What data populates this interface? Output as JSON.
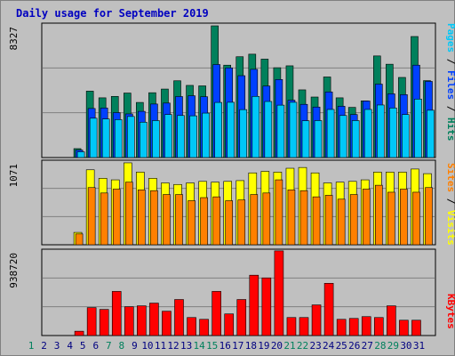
{
  "title": "Daily usage for September 2019",
  "colors": {
    "background": "#c0c0c0",
    "hits": "#00805c",
    "files": "#0040ff",
    "pages": "#00c8f8",
    "visits": "#ffff00",
    "sites": "#ff8000",
    "kbytes": "#ff0000",
    "title": "#0000c0",
    "weekend_day": "#00805c",
    "weekday": "#000080"
  },
  "legends": {
    "top": {
      "pages": "Pages",
      "sep1": " / ",
      "files": "Files",
      "sep2": " / ",
      "hits": "Hits"
    },
    "middle": {
      "sites": "Sites",
      "sep1": " / ",
      "visits": "Visits"
    },
    "bottom": {
      "kbytes": "KBytes"
    }
  },
  "chart_data": [
    {
      "type": "bar",
      "panel": "hits-files-pages",
      "y_max_label": "8327",
      "ylim": [
        0,
        8327
      ],
      "categories": [
        "1",
        "2",
        "3",
        "4",
        "5",
        "6",
        "7",
        "8",
        "9",
        "10",
        "11",
        "12",
        "13",
        "14",
        "15",
        "16",
        "17",
        "18",
        "19",
        "20",
        "21",
        "22",
        "23",
        "24",
        "25",
        "26",
        "27",
        "28",
        "29",
        "30",
        "31"
      ],
      "weekend_days": [
        1,
        7,
        8,
        14,
        15,
        21,
        22,
        28,
        29
      ],
      "series": [
        {
          "name": "Hits",
          "values": [
            0,
            0,
            560,
            4170,
            3750,
            3840,
            4050,
            3460,
            4070,
            4300,
            4820,
            4530,
            4500,
            8270,
            5800,
            6330,
            6490,
            6180,
            5640,
            5760,
            4250,
            3800,
            5060,
            3750,
            3150,
            3560,
            6380,
            5860,
            5030,
            7600,
            4830
          ]
        },
        {
          "name": "Files",
          "values": [
            0,
            0,
            470,
            3080,
            3110,
            2820,
            2740,
            2900,
            3360,
            3420,
            3830,
            3880,
            3820,
            5840,
            5630,
            5140,
            5540,
            4490,
            4900,
            3600,
            3340,
            3170,
            4120,
            3220,
            2700,
            3550,
            4610,
            4000,
            3950,
            5800,
            4780
          ]
        },
        {
          "name": "Pages",
          "values": [
            0,
            0,
            360,
            2470,
            2420,
            2380,
            2580,
            2220,
            2320,
            2700,
            2640,
            2620,
            2790,
            3460,
            3470,
            3010,
            3840,
            3520,
            3290,
            3470,
            2310,
            2320,
            3020,
            2640,
            2320,
            3020,
            3300,
            3110,
            2700,
            3670,
            2970
          ]
        }
      ]
    },
    {
      "type": "bar",
      "panel": "visits-sites",
      "y_max_label": "1071",
      "ylim": [
        0,
        1071
      ],
      "categories": [
        "1",
        "2",
        "3",
        "4",
        "5",
        "6",
        "7",
        "8",
        "9",
        "10",
        "11",
        "12",
        "13",
        "14",
        "15",
        "16",
        "17",
        "18",
        "19",
        "20",
        "21",
        "22",
        "23",
        "24",
        "25",
        "26",
        "27",
        "28",
        "29",
        "30",
        "31"
      ],
      "series": [
        {
          "name": "Visits",
          "values": [
            0,
            0,
            160,
            970,
            860,
            840,
            1060,
            940,
            860,
            800,
            780,
            800,
            820,
            810,
            820,
            830,
            930,
            950,
            940,
            990,
            1000,
            930,
            800,
            810,
            820,
            840,
            940,
            940,
            940,
            980,
            920
          ]
        },
        {
          "name": "Sites",
          "values": [
            0,
            0,
            140,
            740,
            670,
            720,
            810,
            710,
            700,
            650,
            650,
            570,
            610,
            620,
            570,
            580,
            650,
            670,
            840,
            710,
            700,
            620,
            640,
            590,
            650,
            720,
            770,
            680,
            720,
            680,
            740
          ]
        }
      ]
    },
    {
      "type": "bar",
      "panel": "kbytes",
      "y_max_label": "938720",
      "ylim": [
        0,
        938720
      ],
      "categories": [
        "1",
        "2",
        "3",
        "4",
        "5",
        "6",
        "7",
        "8",
        "9",
        "10",
        "11",
        "12",
        "13",
        "14",
        "15",
        "16",
        "17",
        "18",
        "19",
        "20",
        "21",
        "22",
        "23",
        "24",
        "25",
        "26",
        "27",
        "28",
        "29",
        "30",
        "31"
      ],
      "series": [
        {
          "name": "KBytes",
          "values": [
            0,
            0,
            48000,
            310000,
            290000,
            490000,
            320000,
            330000,
            360000,
            270000,
            400000,
            200000,
            180000,
            490000,
            240000,
            400000,
            670000,
            640000,
            940000,
            200000,
            200000,
            340000,
            580000,
            180000,
            190000,
            210000,
            200000,
            330000,
            170000,
            170000,
            0
          ]
        }
      ]
    }
  ]
}
